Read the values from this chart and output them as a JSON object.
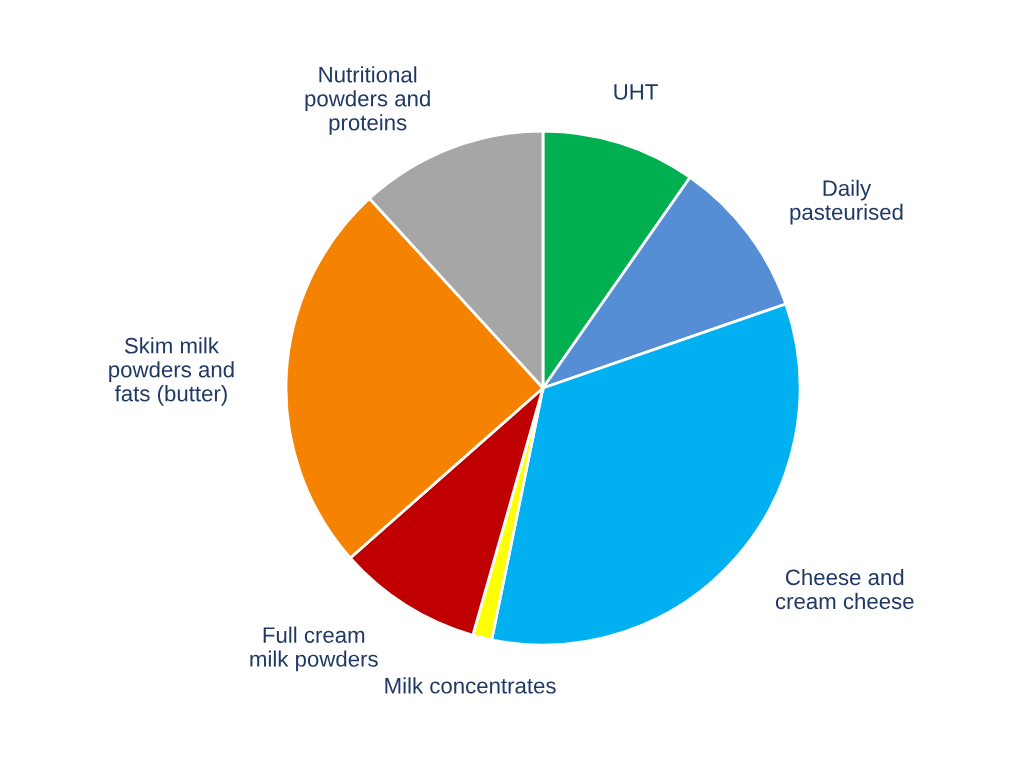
{
  "chart_data": {
    "type": "pie",
    "categories": [
      "UHT",
      "Daily\npasteurised",
      "Cheese and\ncream cheese",
      "Milk concentrates",
      "Full cream\nmilk powders",
      "Skim milk\npowders and\nfats (butter)",
      "Nutritional\npowders and\nproteins"
    ],
    "values": [
      9.7,
      10,
      33.5,
      1.2,
      9.1,
      24.7,
      11.8
    ],
    "colors": [
      "#00b050",
      "#558ed5",
      "#00b0f0",
      "#ffff00",
      "#c00000",
      "#f58200",
      "#a6a6a6"
    ],
    "legend": false
  }
}
